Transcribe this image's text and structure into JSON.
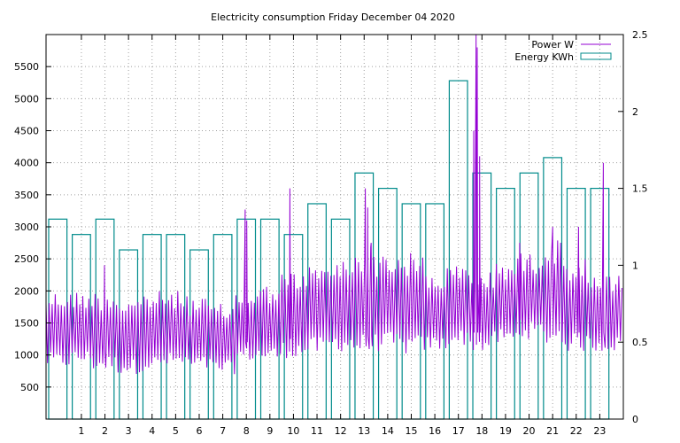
{
  "chart_data": {
    "type": "line",
    "title": "Electricity consumption Friday December 04 2020",
    "xlabel": "",
    "ylabel": "",
    "xlim": [
      -0.5,
      24
    ],
    "ylim": [
      0,
      6000
    ],
    "y2lim": [
      0,
      2.5
    ],
    "x_ticks": [
      1,
      2,
      3,
      4,
      5,
      6,
      7,
      8,
      9,
      10,
      11,
      12,
      13,
      14,
      15,
      16,
      17,
      18,
      19,
      20,
      21,
      22,
      23
    ],
    "y_ticks": [
      500,
      1000,
      1500,
      2000,
      2500,
      3000,
      3500,
      4000,
      4500,
      5000,
      5500
    ],
    "y2_ticks": [
      0,
      0.5,
      1,
      1.5,
      2,
      2.5
    ],
    "grid": true,
    "legend_position": "top-right",
    "series": [
      {
        "name": "Power W",
        "axis": "left",
        "color": "#9400d3",
        "style": "line",
        "hourly_low": [
          800,
          850,
          750,
          700,
          750,
          800,
          750,
          700,
          900,
          900,
          950,
          1000,
          1050,
          1000,
          1050,
          1000,
          1050,
          1150,
          1050,
          1150,
          1250,
          1150,
          1050,
          1050
        ],
        "hourly_high": [
          2000,
          2000,
          2000,
          1900,
          2000,
          2000,
          1900,
          1800,
          2000,
          2100,
          2300,
          2400,
          2500,
          2700,
          2600,
          2600,
          2300,
          2400,
          2300,
          2500,
          2600,
          2800,
          2500,
          2250
        ],
        "spikes": [
          [
            1.98,
            2400
          ],
          [
            7.95,
            3270
          ],
          [
            8.02,
            3100
          ],
          [
            9.85,
            3600
          ],
          [
            13.05,
            3600
          ],
          [
            13.15,
            3300
          ],
          [
            13.3,
            2750
          ],
          [
            17.65,
            4500
          ],
          [
            17.75,
            6000
          ],
          [
            17.8,
            5800
          ],
          [
            17.9,
            4100
          ],
          [
            19.6,
            2750
          ],
          [
            21.0,
            3000
          ],
          [
            22.1,
            3000
          ],
          [
            23.15,
            4000
          ]
        ]
      },
      {
        "name": "Energy KWh",
        "axis": "right",
        "color": "#008b8b",
        "style": "boxes",
        "x": [
          -0.5,
          0.5,
          1.5,
          2.5,
          3.5,
          4.5,
          5.5,
          6.5,
          7.5,
          8.5,
          9.5,
          10.5,
          11.5,
          12.5,
          13.5,
          14.5,
          15.5,
          16.5,
          17.5,
          18.5,
          19.5,
          20.5,
          21.5,
          22.5
        ],
        "values": [
          1.3,
          1.2,
          1.3,
          1.1,
          1.2,
          1.2,
          1.1,
          1.2,
          1.3,
          1.3,
          1.2,
          1.4,
          1.3,
          1.6,
          1.5,
          1.4,
          1.4,
          2.2,
          1.6,
          1.5,
          1.6,
          1.7,
          1.5,
          1.5
        ]
      }
    ]
  }
}
